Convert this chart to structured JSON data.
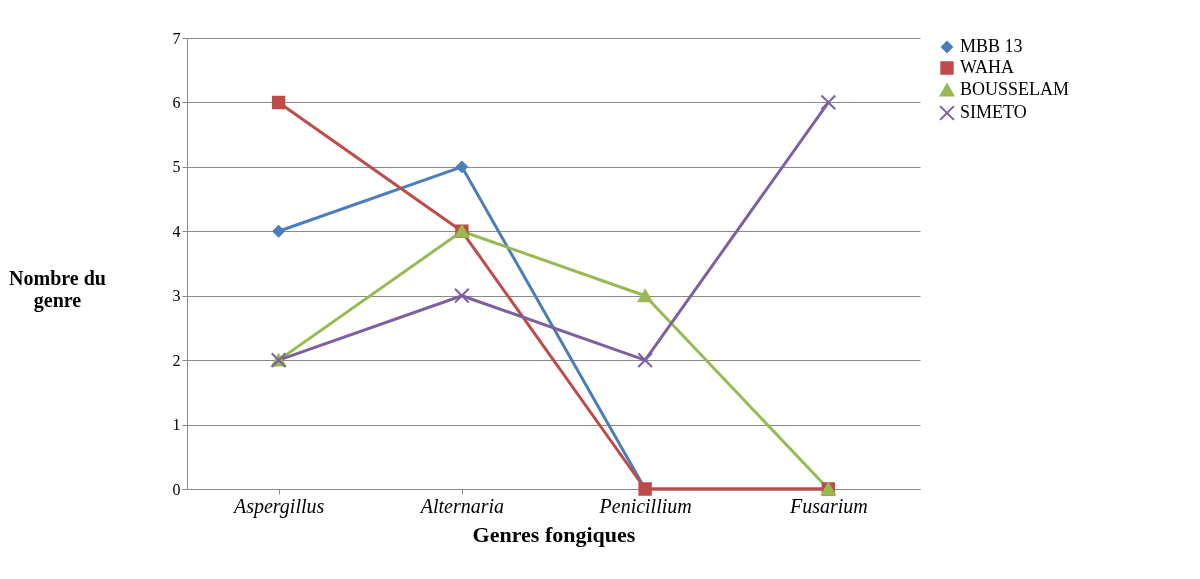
{
  "chart_data": {
    "type": "line",
    "xlabel": "Genres fongiques",
    "ylabel": "Nombre du genre",
    "categories": [
      "Aspergillus",
      "Alternaria",
      "Penicillium",
      "Fusarium"
    ],
    "series": [
      {
        "name": "MBB 13",
        "color": "#4a7ebb",
        "marker": "diamond",
        "values": [
          4,
          5,
          0,
          0
        ]
      },
      {
        "name": "WAHA",
        "color": "#be4b48",
        "marker": "square",
        "values": [
          6,
          4,
          0,
          0
        ]
      },
      {
        "name": "BOUSSELAM",
        "color": "#98b954",
        "marker": "triangle",
        "values": [
          2,
          4,
          3,
          0
        ]
      },
      {
        "name": "SIMETO",
        "color": "#7d60a0",
        "marker": "cross",
        "values": [
          2,
          3,
          2,
          6
        ]
      }
    ],
    "ylim": [
      0,
      7
    ],
    "yticks": [
      0,
      1,
      2,
      3,
      4,
      5,
      6,
      7
    ],
    "grid": "y",
    "legend": "right"
  }
}
